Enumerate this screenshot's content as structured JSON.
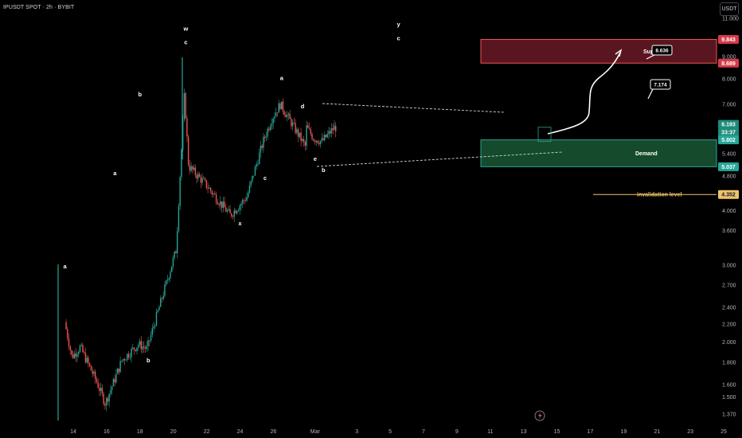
{
  "header": {
    "symbol_title": "IPUSDT SPOT · 2h · BYBIT",
    "currency_button": "USDT"
  },
  "colors": {
    "background": "#000000",
    "up_candle": "#26a69a",
    "down_candle": "#ef5350",
    "supply_zone": "#ef5350",
    "demand_zone": "#26a69a",
    "invalidation_line": "#f0c36a",
    "axis_text": "#b2b5be"
  },
  "chart_data": {
    "type": "candlestick",
    "y_scale": "log",
    "ylim": [
      1.32,
      11.2
    ],
    "price_axis_ticks": [
      "11.000",
      "9.000",
      "8.000",
      "7.000",
      "5.400",
      "4.800",
      "4.000",
      "3.600",
      "3.000",
      "2.700",
      "2.400",
      "2.200",
      "2.000",
      "1.800",
      "1.600",
      "1.500",
      "1.370"
    ],
    "time_axis_labels": [
      "14",
      "16",
      "18",
      "20",
      "22",
      "24",
      "26",
      "Mar",
      "3",
      "5",
      "7",
      "9",
      "11",
      "13",
      "15",
      "17",
      "19",
      "21",
      "23",
      "25"
    ],
    "price_path": [
      {
        "t": "Feb 13 12:00",
        "p": 1.55
      },
      {
        "t": "Feb 13 13:00",
        "p": 2.25
      },
      {
        "t": "Feb 14 00:00",
        "p": 1.85
      },
      {
        "t": "Feb 14 12:00",
        "p": 1.95
      },
      {
        "t": "Feb 15 12:00",
        "p": 1.62
      },
      {
        "t": "Feb 16 00:00",
        "p": 1.45
      },
      {
        "t": "Feb 16 12:00",
        "p": 1.62
      },
      {
        "t": "Feb 17 00:00",
        "p": 1.82
      },
      {
        "t": "Feb 18 00:00",
        "p": 1.98
      },
      {
        "t": "Feb 18 12:00",
        "p": 1.93
      },
      {
        "t": "Feb 19 12:00",
        "p": 2.6
      },
      {
        "t": "Feb 20 06:00",
        "p": 3.25
      },
      {
        "t": "Feb 20 18:00",
        "p": 7.4
      },
      {
        "t": "Feb 21 00:00",
        "p": 5.05
      },
      {
        "t": "Feb 22 00:00",
        "p": 4.6
      },
      {
        "t": "Feb 23 12:00",
        "p": 3.9
      },
      {
        "t": "Feb 24 12:00",
        "p": 4.3
      },
      {
        "t": "Feb 25 00:00",
        "p": 5.0
      },
      {
        "t": "Feb 25 12:00",
        "p": 5.8
      },
      {
        "t": "Feb 26 00:00",
        "p": 6.5
      },
      {
        "t": "Feb 26 12:00",
        "p": 7.0
      },
      {
        "t": "Feb 27 00:00",
        "p": 6.5
      },
      {
        "t": "Feb 28 00:00",
        "p": 5.6
      },
      {
        "t": "Mar 1 00:00",
        "p": 5.4
      },
      {
        "t": "Mar 2 00:00",
        "p": 5.8
      },
      {
        "t": "Mar 3 00:00",
        "p": 6.75
      },
      {
        "t": "Mar 3 18:00",
        "p": 5.3
      },
      {
        "t": "Mar 4 12:00",
        "p": 5.85
      },
      {
        "t": "Mar 5 12:00",
        "p": 5.3
      },
      {
        "t": "Mar 6 12:00",
        "p": 5.15
      },
      {
        "t": "Mar 7 12:00",
        "p": 4.7
      },
      {
        "t": "Mar 8 12:00",
        "p": 4.85
      },
      {
        "t": "Mar 9 12:00",
        "p": 4.8
      },
      {
        "t": "Mar 10 00:00",
        "p": 5.05
      },
      {
        "t": "Mar 10 12:00",
        "p": 4.92
      },
      {
        "t": "Mar 11 12:00",
        "p": 5.45
      },
      {
        "t": "Mar 12 06:00",
        "p": 5.6
      },
      {
        "t": "Mar 12 18:00",
        "p": 6.45
      },
      {
        "t": "Mar 13 12:00",
        "p": 5.85
      },
      {
        "t": "Mar 14 00:00",
        "p": 5.75
      },
      {
        "t": "Mar 14 12:00",
        "p": 6.05
      },
      {
        "t": "Mar 14 18:00",
        "p": 6.19
      }
    ],
    "zones": [
      {
        "name": "Supply",
        "top": 9.843,
        "bottom": 8.689
      },
      {
        "name": "Demand",
        "top": 5.802,
        "bottom": 5.037
      }
    ],
    "levels": [
      {
        "name": "invalidation level",
        "value": 4.352
      }
    ],
    "price_badges": [
      {
        "value": "9.843",
        "kind": "supply"
      },
      {
        "value": "8.689",
        "kind": "supply"
      },
      {
        "value": "6.193",
        "kind": "current"
      },
      {
        "value": "33:37",
        "kind": "countdown"
      },
      {
        "value": "5.802",
        "kind": "demand"
      },
      {
        "value": "5.037",
        "kind": "demand"
      },
      {
        "value": "4.352",
        "kind": "invalidation"
      }
    ],
    "target_notes": [
      "8.636",
      "7.174"
    ],
    "wave_labels": [
      {
        "text": "a",
        "t": "Feb 13 12:00",
        "p": 2.95
      },
      {
        "text": "b",
        "t": "Feb 18 12:00",
        "p": 1.8
      },
      {
        "text": "w",
        "t": "Feb 20 18:00",
        "p": 10.3
      },
      {
        "text": "c",
        "t": "Feb 20 18:00",
        "p": 9.6
      },
      {
        "text": "x",
        "t": "Feb 24 00:00",
        "p": 3.7
      },
      {
        "text": "a",
        "t": "Feb 26 12:00",
        "p": 7.95
      },
      {
        "text": "a",
        "t": "Mar 1 12:00",
        "p": 4.82
      },
      {
        "text": "b",
        "t": "Mar 3 00:00",
        "p": 7.3
      },
      {
        "text": "c",
        "t": "Mar 10 12:00",
        "p": 4.7
      },
      {
        "text": "d",
        "t": "Mar 12 18:00",
        "p": 6.85
      },
      {
        "text": "e",
        "t": "Mar 13 12:00",
        "p": 5.2
      },
      {
        "text": "b",
        "t": "Mar 14 00:00",
        "p": 4.9
      },
      {
        "text": "y",
        "t": "Mar 18 12:00",
        "p": 10.55
      },
      {
        "text": "c",
        "t": "Mar 18 12:00",
        "p": 9.8
      }
    ]
  }
}
